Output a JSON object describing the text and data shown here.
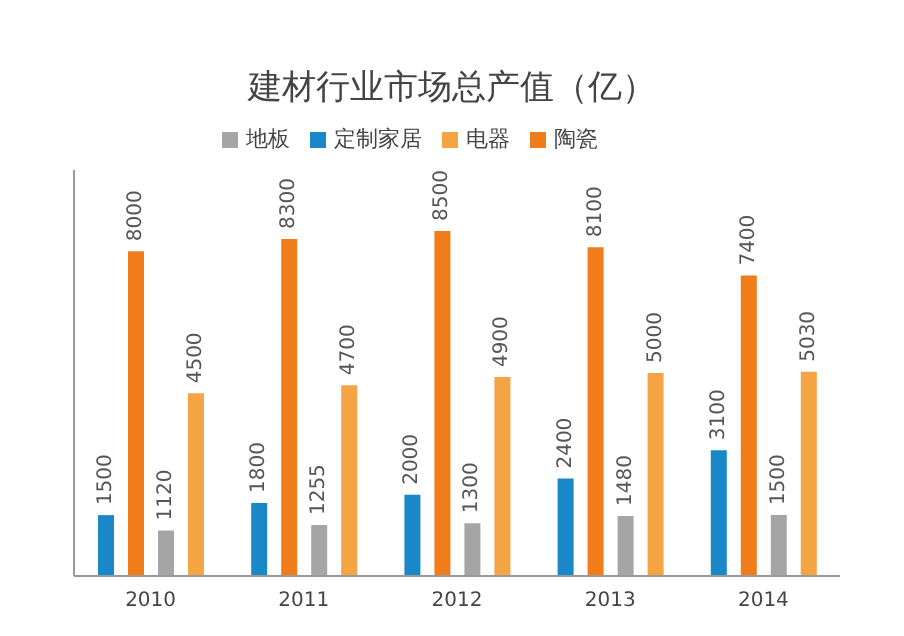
{
  "chart_data": {
    "type": "bar",
    "title": "建材行业市场总产值（亿）",
    "categories": [
      "2010",
      "2011",
      "2012",
      "2013",
      "2014"
    ],
    "series": [
      {
        "name": "定制家居",
        "color": "#1a87c8",
        "values": [
          1500,
          1800,
          2000,
          2400,
          3100
        ]
      },
      {
        "name": "陶瓷",
        "color": "#f07d1a",
        "values": [
          8000,
          8300,
          8500,
          8100,
          7400
        ]
      },
      {
        "name": "地板",
        "color": "#a5a5a5",
        "values": [
          1120,
          1255,
          1300,
          1480,
          1500
        ]
      },
      {
        "name": "电器",
        "color": "#f5a443",
        "values": [
          4500,
          4700,
          4900,
          5000,
          5030
        ]
      }
    ],
    "ylim": [
      0,
      10000
    ],
    "tick_labels": "x",
    "data_labels": true,
    "legend": "top",
    "grid": false
  }
}
